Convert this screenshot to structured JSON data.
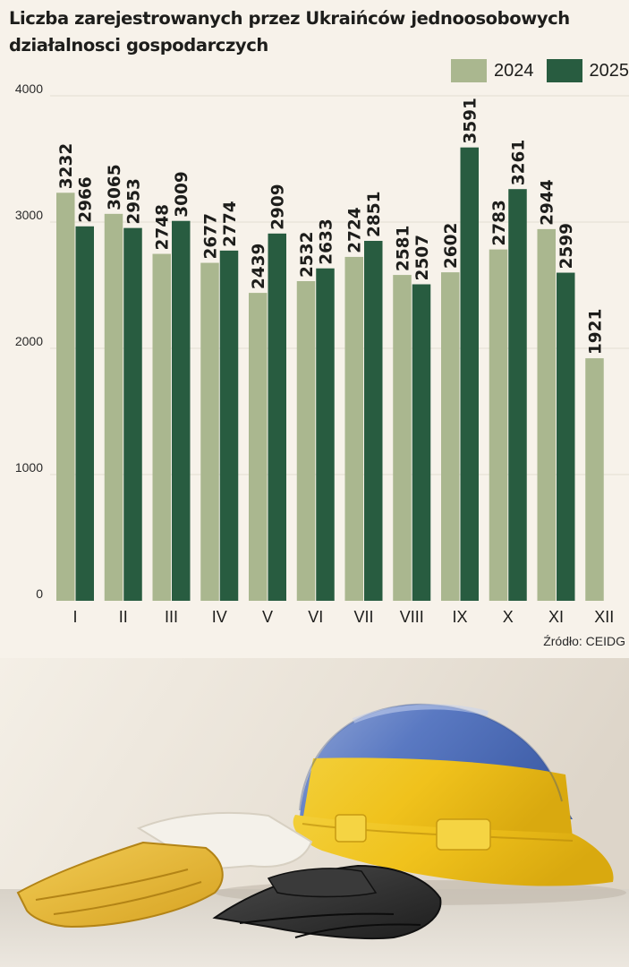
{
  "title_lines": [
    "Liczba zarejestrowanych przez Ukraińców jednoosobowych",
    "działalnosci gospodarczych"
  ],
  "source": "Źródło: CEIDG",
  "colors": {
    "series_2024": "#aab78f",
    "series_2025": "#285c40",
    "background": "#f7f2ea",
    "gridline": "#e3ddd2"
  },
  "chart_data": {
    "type": "bar",
    "title": "Liczba zarejestrowanych przez Ukraińców jednoosobowych działalnosci gospodarczych",
    "categories": [
      "I",
      "II",
      "III",
      "IV",
      "V",
      "VI",
      "VII",
      "VIII",
      "IX",
      "X",
      "XI",
      "XII"
    ],
    "series": [
      {
        "name": "2024",
        "values": [
          3232,
          3065,
          2748,
          2677,
          2439,
          2532,
          2724,
          2581,
          2602,
          2783,
          2944,
          1921
        ]
      },
      {
        "name": "2025",
        "values": [
          2966,
          2953,
          3009,
          2774,
          2909,
          2633,
          2851,
          2507,
          3591,
          3261,
          2599,
          null
        ]
      }
    ],
    "y_ticks": [
      "0",
      "1000",
      "2000",
      "3000",
      "4000"
    ],
    "ylim": [
      0,
      4000
    ],
    "grid": true,
    "legend_position": "top-right",
    "data_labels": true
  },
  "photo": {
    "icon": "hard-hat-and-gloves-illustration"
  }
}
